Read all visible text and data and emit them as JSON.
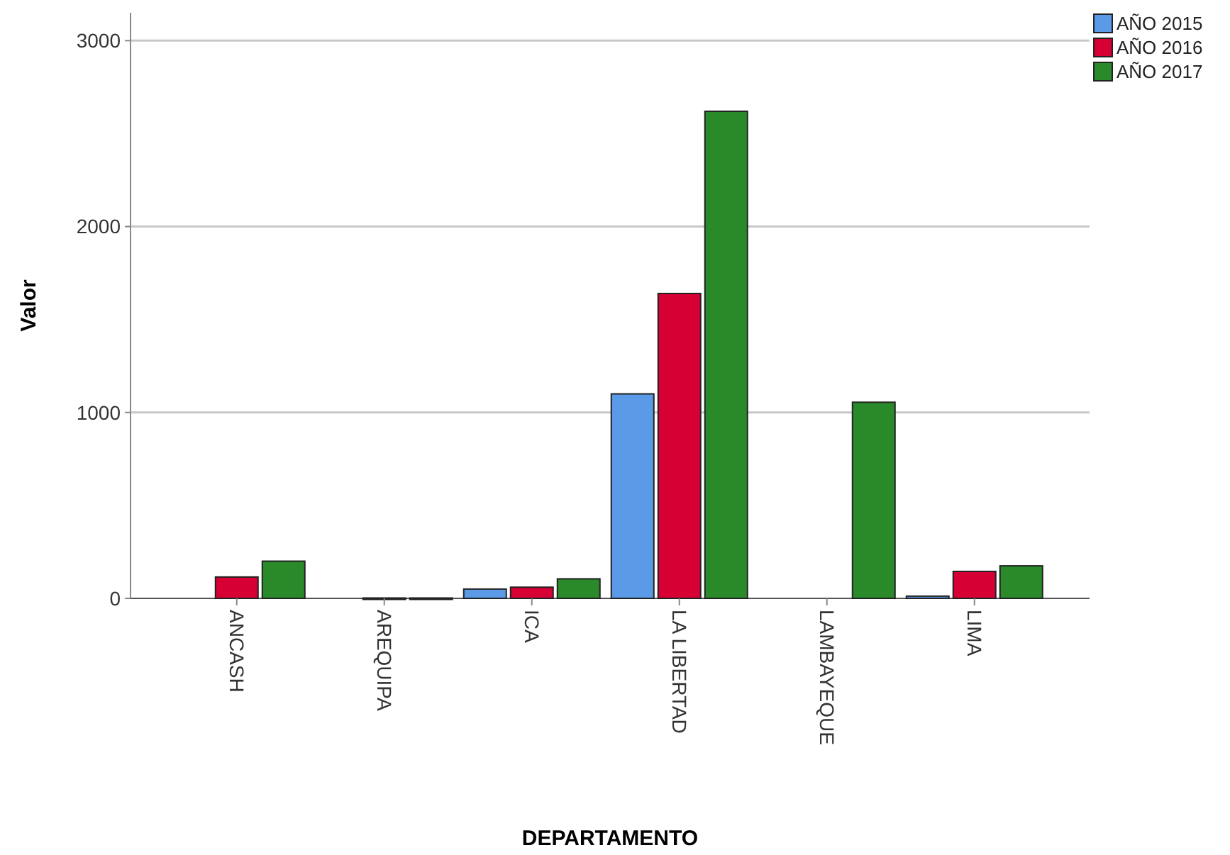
{
  "chart_data": {
    "type": "bar",
    "xlabel": "DEPARTAMENTO",
    "ylabel": "Valor",
    "categories": [
      "ANCASH",
      "AREQUIPA",
      "ICA",
      "LA LIBERTAD",
      "LAMBAYEQUE",
      "LIMA"
    ],
    "series": [
      {
        "name": "AÑO 2015",
        "color": "#5a9ae6",
        "values": [
          null,
          null,
          50,
          1100,
          null,
          12
        ]
      },
      {
        "name": "AÑO 2016",
        "color": "#d70034",
        "values": [
          115,
          2,
          60,
          1640,
          null,
          145
        ]
      },
      {
        "name": "AÑO 2017",
        "color": "#2a8a2a",
        "values": [
          200,
          2,
          105,
          2620,
          1055,
          175
        ]
      }
    ],
    "ylim": [
      0,
      3150
    ],
    "yticks": [
      0,
      1000,
      2000,
      3000
    ],
    "grid": "y",
    "legend": "top right"
  }
}
